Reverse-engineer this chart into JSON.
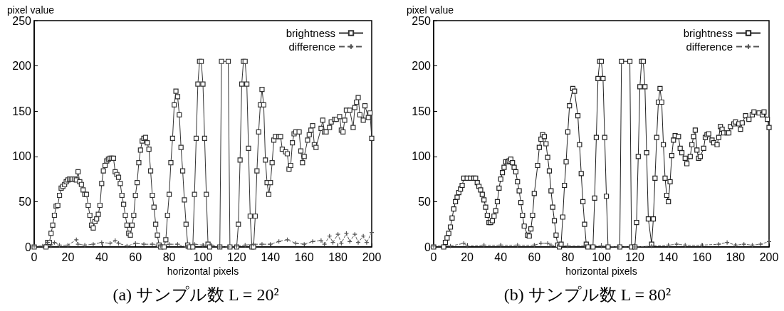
{
  "chart_data": [
    {
      "type": "line",
      "title": "(a) サンプル数 L = 20²",
      "xlabel": "horizontal pixels",
      "ylabel": "pixel value",
      "xlim": [
        0,
        200
      ],
      "xticks": [
        0,
        20,
        40,
        60,
        80,
        100,
        120,
        140,
        160,
        180,
        200
      ],
      "ylim": [
        0,
        250
      ],
      "yticks": [
        0,
        50,
        100,
        150,
        200,
        250
      ],
      "grid": false,
      "legend": "top right",
      "series": [
        {
          "name": "brightness",
          "color": "#333333",
          "marker": "square",
          "line_style": "solid",
          "x": [
            0,
            7,
            8,
            9,
            10,
            11,
            12,
            13,
            14,
            15,
            16,
            17,
            18,
            19,
            20,
            21,
            22,
            23,
            24,
            25,
            26,
            27,
            28,
            29,
            30,
            31,
            32,
            33,
            34,
            35,
            36,
            37,
            38,
            39,
            40,
            41,
            42,
            43,
            44,
            45,
            46,
            47,
            48,
            49,
            50,
            51,
            52,
            53,
            54,
            55,
            56,
            57,
            58,
            59,
            60,
            61,
            62,
            63,
            64,
            65,
            66,
            67,
            68,
            69,
            70,
            71,
            72,
            73,
            74,
            75,
            77,
            78,
            79,
            80,
            81,
            82,
            83,
            84,
            85,
            86,
            87,
            88,
            89,
            90,
            91,
            92,
            94,
            95,
            96,
            97,
            98,
            99,
            100,
            101,
            102,
            103,
            104,
            110,
            111,
            115,
            116,
            120,
            121,
            122,
            123,
            124,
            125,
            126,
            127,
            128,
            129,
            130,
            131,
            132,
            133,
            134,
            135,
            136,
            137,
            138,
            139,
            140,
            141,
            142,
            143,
            145,
            146,
            147,
            149,
            150,
            151,
            152,
            153,
            154,
            155,
            157,
            158,
            159,
            160,
            162,
            163,
            164,
            165,
            166,
            167,
            170,
            171,
            172,
            173,
            175,
            176,
            178,
            179,
            181,
            182,
            183,
            184,
            185,
            187,
            189,
            190,
            191,
            192,
            193,
            195,
            196,
            198,
            199,
            200
          ],
          "values": [
            0,
            0,
            5,
            5,
            15,
            24,
            35,
            45,
            46,
            57,
            65,
            67,
            69,
            72,
            74,
            75,
            75,
            75,
            75,
            74,
            83,
            72,
            69,
            63,
            58,
            58,
            46,
            35,
            24,
            21,
            28,
            31,
            36,
            46,
            70,
            84,
            90,
            95,
            97,
            98,
            98,
            98,
            83,
            80,
            77,
            70,
            57,
            47,
            35,
            24,
            15,
            13,
            24,
            35,
            57,
            71,
            93,
            107,
            117,
            120,
            121,
            115,
            108,
            84,
            57,
            44,
            25,
            13,
            2,
            0,
            0,
            8,
            35,
            58,
            93,
            120,
            157,
            172,
            166,
            146,
            110,
            84,
            52,
            25,
            2,
            0,
            0,
            58,
            120,
            180,
            205,
            205,
            180,
            120,
            58,
            3,
            0,
            0,
            205,
            205,
            0,
            0,
            25,
            96,
            180,
            205,
            205,
            180,
            109,
            34,
            0,
            0,
            34,
            84,
            127,
            157,
            174,
            157,
            96,
            71,
            58,
            71,
            93,
            118,
            122,
            122,
            122,
            108,
            105,
            103,
            86,
            90,
            115,
            125,
            127,
            127,
            106,
            93,
            100,
            118,
            124,
            129,
            134,
            113,
            110,
            131,
            140,
            127,
            127,
            132,
            138,
            141,
            141,
            144,
            129,
            127,
            140,
            151,
            151,
            132,
            154,
            160,
            165,
            146,
            140,
            156,
            143,
            148,
            120
          ]
        },
        {
          "name": "difference",
          "color": "#555555",
          "marker": "cross",
          "line_style": "dashed",
          "x": [
            0,
            5,
            8,
            10,
            12,
            15,
            20,
            25,
            26,
            30,
            35,
            40,
            45,
            48,
            50,
            55,
            60,
            65,
            70,
            75,
            80,
            85,
            90,
            95,
            100,
            105,
            110,
            115,
            120,
            125,
            130,
            135,
            140,
            145,
            150,
            155,
            160,
            165,
            170,
            172,
            175,
            177,
            180,
            182,
            185,
            187,
            190,
            192,
            195,
            197,
            200
          ],
          "values": [
            1,
            1,
            5,
            1,
            5,
            2,
            2,
            8,
            3,
            2,
            3,
            5,
            4,
            7,
            4,
            1,
            4,
            3,
            3,
            1,
            3,
            3,
            0,
            3,
            2,
            2,
            0,
            0,
            1,
            2,
            3,
            3,
            3,
            6,
            8,
            4,
            3,
            6,
            7,
            3,
            12,
            5,
            14,
            4,
            15,
            6,
            14,
            5,
            12,
            5,
            16
          ]
        }
      ]
    },
    {
      "type": "line",
      "title": "(b) サンプル数 L = 80²",
      "xlabel": "horizontal pixels",
      "ylabel": "pixel value",
      "xlim": [
        0,
        200
      ],
      "xticks": [
        0,
        20,
        40,
        60,
        80,
        100,
        120,
        140,
        160,
        180,
        200
      ],
      "ylim": [
        0,
        250
      ],
      "yticks": [
        0,
        50,
        100,
        150,
        200,
        250
      ],
      "grid": false,
      "legend": "top right",
      "series": [
        {
          "name": "brightness",
          "color": "#222222",
          "marker": "square",
          "line_style": "solid",
          "x": [
            0,
            6,
            7,
            8,
            9,
            10,
            11,
            12,
            13,
            14,
            15,
            16,
            17,
            18,
            20,
            22,
            24,
            25,
            26,
            27,
            28,
            29,
            30,
            31,
            32,
            33,
            34,
            35,
            36,
            37,
            38,
            39,
            40,
            41,
            42,
            43,
            44,
            45,
            46,
            47,
            48,
            49,
            50,
            51,
            52,
            53,
            54,
            56,
            57,
            58,
            59,
            60,
            62,
            63,
            64,
            65,
            66,
            67,
            68,
            69,
            70,
            71,
            72,
            73,
            74,
            75,
            76,
            77,
            78,
            79,
            80,
            81,
            83,
            84,
            86,
            87,
            88,
            89,
            90,
            91,
            92,
            95,
            96,
            97,
            98,
            99,
            100,
            101,
            102,
            103,
            104,
            111,
            112,
            117,
            118,
            120,
            121,
            122,
            123,
            124,
            125,
            126,
            127,
            128,
            130,
            131,
            132,
            133,
            134,
            135,
            136,
            137,
            138,
            139,
            140,
            141,
            142,
            143,
            144,
            146,
            147,
            148,
            150,
            151,
            153,
            154,
            155,
            156,
            157,
            158,
            159,
            161,
            162,
            163,
            164,
            166,
            167,
            169,
            170,
            171,
            172,
            173,
            175,
            176,
            177,
            179,
            180,
            182,
            183,
            184,
            186,
            188,
            190,
            191,
            194,
            196,
            197,
            199,
            200
          ],
          "values": [
            0,
            0,
            5,
            10,
            15,
            22,
            32,
            42,
            50,
            55,
            60,
            64,
            68,
            76,
            76,
            76,
            76,
            76,
            71,
            67,
            63,
            58,
            52,
            44,
            35,
            27,
            27,
            29,
            34,
            40,
            50,
            65,
            75,
            82,
            88,
            94,
            94,
            95,
            97,
            93,
            88,
            83,
            72,
            62,
            49,
            35,
            23,
            13,
            12,
            20,
            35,
            59,
            90,
            110,
            119,
            124,
            122,
            114,
            99,
            84,
            62,
            44,
            29,
            13,
            2,
            0,
            3,
            33,
            68,
            94,
            127,
            156,
            175,
            172,
            145,
            113,
            81,
            50,
            25,
            3,
            0,
            0,
            54,
            121,
            186,
            205,
            205,
            186,
            121,
            56,
            0,
            0,
            205,
            205,
            0,
            0,
            27,
            100,
            177,
            205,
            205,
            177,
            104,
            31,
            3,
            31,
            76,
            121,
            160,
            175,
            160,
            113,
            76,
            57,
            50,
            72,
            101,
            118,
            123,
            122,
            109,
            104,
            98,
            92,
            100,
            113,
            122,
            129,
            107,
            98,
            100,
            109,
            121,
            124,
            125,
            118,
            115,
            113,
            121,
            133,
            130,
            126,
            126,
            126,
            133,
            136,
            138,
            136,
            130,
            137,
            145,
            141,
            146,
            149,
            148,
            146,
            149,
            141,
            132
          ]
        },
        {
          "name": "difference",
          "color": "#555555",
          "marker": "cross",
          "line_style": "dashed",
          "x": [
            0,
            10,
            18,
            20,
            30,
            40,
            50,
            60,
            64,
            68,
            70,
            80,
            90,
            100,
            110,
            120,
            130,
            140,
            145,
            150,
            160,
            170,
            175,
            180,
            185,
            190,
            195,
            200
          ],
          "values": [
            1,
            1,
            4,
            1,
            2,
            2,
            2,
            2,
            4,
            4,
            2,
            1,
            1,
            1,
            0,
            0,
            1,
            2,
            3,
            2,
            2,
            3,
            5,
            2,
            3,
            2,
            3,
            6
          ]
        }
      ]
    }
  ]
}
